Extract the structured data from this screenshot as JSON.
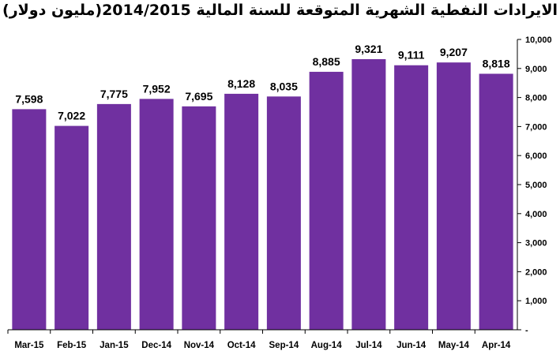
{
  "chart_data": {
    "type": "bar",
    "title": "الايرادات النفطية الشهرية المتوقعة للسنة المالية 2014/2015(مليون دولار)",
    "categories": [
      "Mar-15",
      "Feb-15",
      "Jan-15",
      "Dec-14",
      "Nov-14",
      "Oct-14",
      "Sep-14",
      "Aug-14",
      "Jul-14",
      "Jun-14",
      "May-14",
      "Apr-14"
    ],
    "values": [
      7598,
      7022,
      7775,
      7952,
      7695,
      8128,
      8035,
      8885,
      9321,
      9111,
      9207,
      8818
    ],
    "data_labels": [
      "7,598",
      "7,022",
      "7,775",
      "7,952",
      "7,695",
      "8,128",
      "8,035",
      "8,885",
      "9,321",
      "9,111",
      "9,207",
      "8,818"
    ],
    "ylim": [
      0,
      10000
    ],
    "yticks": [
      "-",
      "1,000",
      "2,000",
      "3,000",
      "4,000",
      "5,000",
      "6,000",
      "7,000",
      "8,000",
      "9,000",
      "10,000"
    ],
    "yaxis_side": "right",
    "bar_color": "#7030a0",
    "grid": false,
    "legend": "none"
  }
}
